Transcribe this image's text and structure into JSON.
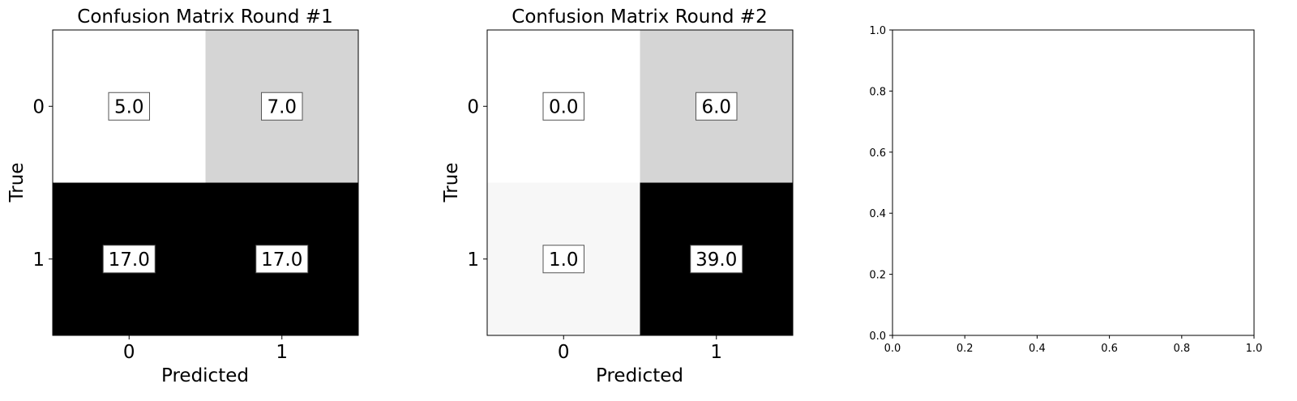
{
  "chart_data": [
    {
      "type": "heatmap",
      "title": "Confusion Matrix Round #1",
      "xlabel": "Predicted",
      "ylabel": "True",
      "x_categories": [
        "0",
        "1"
      ],
      "y_categories": [
        "0",
        "1"
      ],
      "values": [
        [
          5.0,
          7.0
        ],
        [
          17.0,
          17.0
        ]
      ],
      "value_labels": [
        [
          "5.0",
          "7.0"
        ],
        [
          "17.0",
          "17.0"
        ]
      ],
      "colormap": "grayscale, white = low, black = high (per column)",
      "cell_colors": [
        [
          "#ffffff",
          "#d5d5d5"
        ],
        [
          "#000000",
          "#000000"
        ]
      ]
    },
    {
      "type": "heatmap",
      "title": "Confusion Matrix Round #2",
      "xlabel": "Predicted",
      "ylabel": "True",
      "x_categories": [
        "0",
        "1"
      ],
      "y_categories": [
        "0",
        "1"
      ],
      "values": [
        [
          0.0,
          6.0
        ],
        [
          1.0,
          39.0
        ]
      ],
      "value_labels": [
        [
          "0.0",
          "6.0"
        ],
        [
          "1.0",
          "39.0"
        ]
      ],
      "colormap": "grayscale, white = low, black = high (per column)",
      "cell_colors": [
        [
          "#ffffff",
          "#d5d5d5"
        ],
        [
          "#f7f7f7",
          "#000000"
        ]
      ]
    },
    {
      "type": "scatter",
      "title": "",
      "xlabel": "",
      "ylabel": "",
      "xlim": [
        0.0,
        1.0
      ],
      "ylim": [
        0.0,
        1.0
      ],
      "xticks": [
        "0.0",
        "0.2",
        "0.4",
        "0.6",
        "0.8",
        "1.0"
      ],
      "yticks": [
        "0.0",
        "0.2",
        "0.4",
        "0.6",
        "0.8",
        "1.0"
      ],
      "series": []
    }
  ]
}
